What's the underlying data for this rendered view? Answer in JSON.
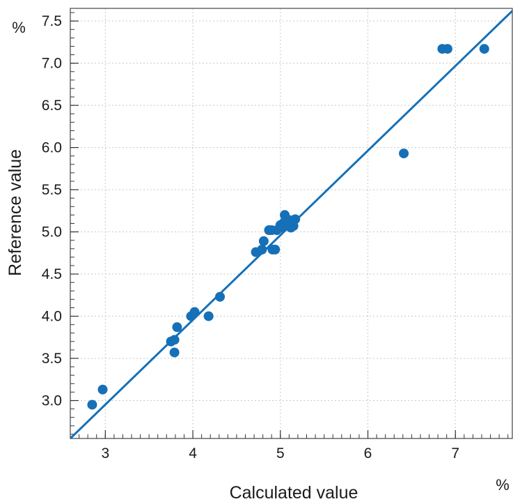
{
  "chart_data": {
    "type": "scatter",
    "title": "",
    "xlabel": "Calculated value",
    "ylabel": "Reference value",
    "x_unit": "%",
    "y_unit": "%",
    "xlim": [
      2.6,
      7.65
    ],
    "ylim": [
      2.55,
      7.65
    ],
    "x_ticks": [
      3,
      4,
      5,
      6,
      7
    ],
    "y_ticks": [
      3.0,
      3.5,
      4.0,
      4.5,
      5.0,
      5.5,
      6.0,
      6.5,
      7.0,
      7.5
    ],
    "x_tick_labels": [
      "3",
      "4",
      "5",
      "6",
      "7"
    ],
    "y_tick_labels": [
      "3.0",
      "3.5",
      "4.0",
      "4.5",
      "5.0",
      "5.5",
      "6.0",
      "6.5",
      "7.0",
      "7.5"
    ],
    "grid": true,
    "legend": "none",
    "colors": {
      "points": "#1570b8",
      "line": "#1570b8",
      "grid": "#c8c8c8",
      "axis": "#333333"
    },
    "fit_line": {
      "x": [
        2.6,
        7.65
      ],
      "y": [
        2.55,
        7.62
      ]
    },
    "series": [
      {
        "points": [
          [
            2.85,
            2.95
          ],
          [
            2.97,
            3.13
          ],
          [
            3.75,
            3.7
          ],
          [
            3.79,
            3.72
          ],
          [
            3.79,
            3.57
          ],
          [
            3.82,
            3.87
          ],
          [
            3.98,
            4.0
          ],
          [
            4.02,
            4.05
          ],
          [
            4.18,
            4.0
          ],
          [
            4.31,
            4.23
          ],
          [
            4.72,
            4.76
          ],
          [
            4.79,
            4.79
          ],
          [
            4.81,
            4.89
          ],
          [
            4.87,
            5.02
          ],
          [
            4.9,
            5.02
          ],
          [
            4.91,
            4.79
          ],
          [
            4.94,
            4.79
          ],
          [
            4.96,
            5.02
          ],
          [
            5.0,
            5.08
          ],
          [
            5.02,
            5.05
          ],
          [
            5.04,
            5.11
          ],
          [
            5.05,
            5.2
          ],
          [
            5.08,
            5.08
          ],
          [
            5.1,
            5.14
          ],
          [
            5.12,
            5.05
          ],
          [
            5.15,
            5.07
          ],
          [
            5.17,
            5.15
          ],
          [
            6.41,
            5.93
          ],
          [
            6.85,
            7.17
          ],
          [
            6.91,
            7.17
          ],
          [
            7.33,
            7.17
          ]
        ]
      }
    ]
  }
}
